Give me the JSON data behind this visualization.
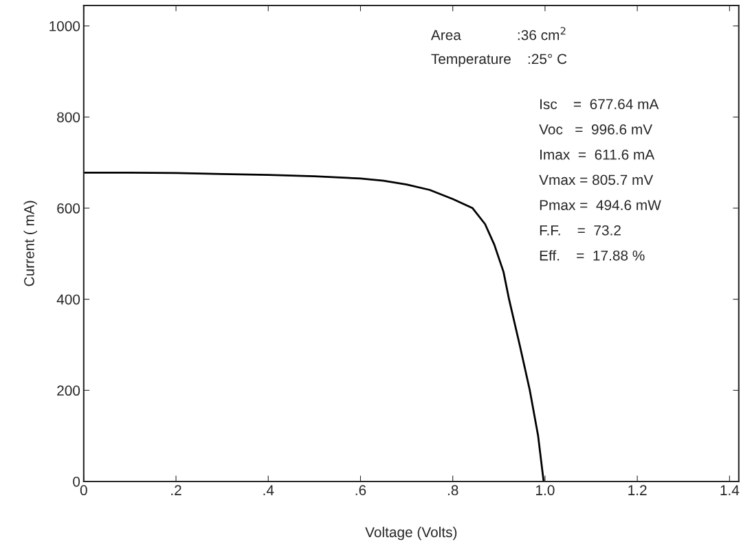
{
  "chart_data": {
    "type": "line",
    "xlabel": "Voltage (Volts)",
    "ylabel": "Current ( mA)",
    "x": [
      0,
      0.1,
      0.2,
      0.3,
      0.4,
      0.5,
      0.6,
      0.65,
      0.7,
      0.75,
      0.8,
      0.843,
      0.87,
      0.89,
      0.91,
      0.922,
      0.945,
      0.967,
      0.985,
      0.997
    ],
    "series": [
      {
        "color": "#000000",
        "values": [
          678,
          678,
          677,
          675,
          673,
          670,
          665,
          660,
          652,
          640,
          620,
          600,
          565,
          520,
          460,
          400,
          300,
          200,
          100,
          0
        ]
      }
    ],
    "xlim": [
      0,
      1.42
    ],
    "ylim": [
      0,
      1045
    ],
    "xticks": [
      0,
      {
        "value": 0.2,
        "label": ".2"
      },
      {
        "value": 0.4,
        "label": ".4"
      },
      {
        "value": 0.6,
        "label": ".6"
      },
      {
        "value": 0.8,
        "label": ".8"
      },
      {
        "value": 1.0,
        "label": "1.0"
      },
      {
        "value": 1.2,
        "label": "1.2"
      },
      {
        "value": 1.4,
        "label": "1.4"
      }
    ],
    "yticks": [
      0,
      200,
      400,
      600,
      800,
      1000
    ],
    "grid": false,
    "marker": "none",
    "line_style": "solid",
    "annotations": [
      "Area              :36 cm$^{2}$",
      "Temperature    :25° C",
      "Isc    =  677.64 mA",
      "Voc   =  996.6 mV",
      "Imax  =  611.6 mA",
      "Vmax = 805.7 mV",
      "Pmax =  494.6 mW",
      "F.F.    =  73.2",
      "Eff.    =  17.88 %"
    ]
  }
}
